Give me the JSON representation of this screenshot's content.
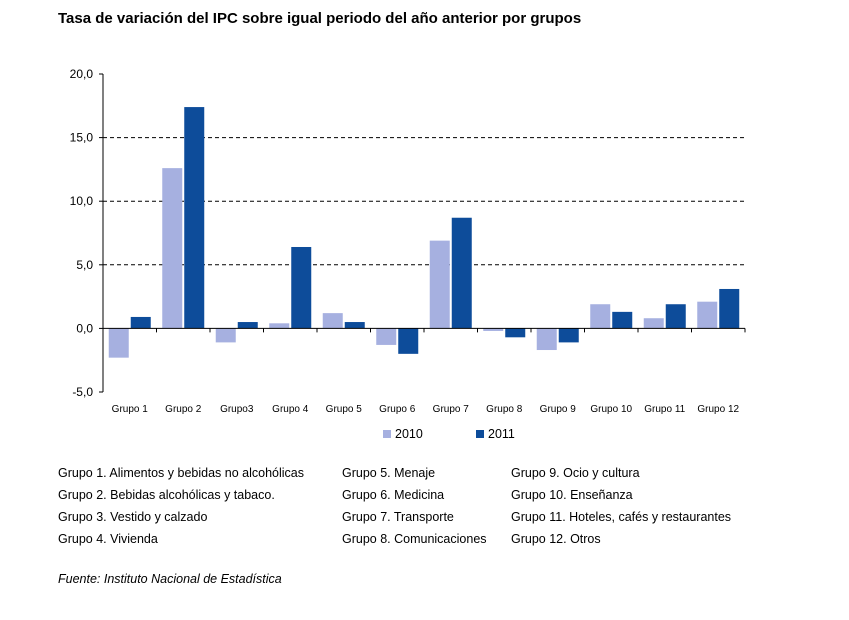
{
  "title": "Tasa de variación del IPC sobre igual periodo del año anterior por grupos",
  "chart_data": {
    "type": "bar",
    "categories": [
      "Grupo 1",
      "Grupo 2",
      "Grupo3",
      "Grupo 4",
      "Grupo 5",
      "Grupo 6",
      "Grupo 7",
      "Grupo 8",
      "Grupo 9",
      "Grupo 10",
      "Grupo 11",
      "Grupo 12"
    ],
    "series": [
      {
        "name": "2010",
        "color": "#a6b0e0",
        "values": [
          -2.3,
          12.6,
          -1.1,
          0.4,
          1.2,
          -1.3,
          6.9,
          -0.2,
          -1.7,
          1.9,
          0.8,
          2.1
        ]
      },
      {
        "name": "2011",
        "color": "#0d4c9a",
        "values": [
          0.9,
          17.4,
          0.5,
          6.4,
          0.5,
          -2.0,
          8.7,
          -0.7,
          -1.1,
          1.3,
          1.9,
          3.1
        ]
      }
    ],
    "yticks": [
      "20,0",
      "15,0",
      "10,0",
      "5,0",
      "0,0",
      "-5,0"
    ],
    "ylim": [
      -5,
      20
    ],
    "grid": "dashed horizontal",
    "legend": "bottom"
  },
  "glossary": [
    [
      "Grupo 1. Alimentos y bebidas no alcohólicas",
      "Grupo 2. Bebidas alcohólicas y  tabaco.",
      "Grupo 3. Vestido y calzado",
      "Grupo 4. Vivienda"
    ],
    [
      "Grupo 5. Menaje",
      "Grupo 6. Medicina",
      "Grupo 7. Transporte",
      "Grupo 8. Comunicaciones"
    ],
    [
      "Grupo 9. Ocio y cultura",
      "Grupo 10. Enseñanza",
      "Grupo 11. Hoteles, cafés y restaurantes",
      "Grupo 12. Otros"
    ]
  ],
  "source": "Fuente: Instituto Nacional de Estadística"
}
